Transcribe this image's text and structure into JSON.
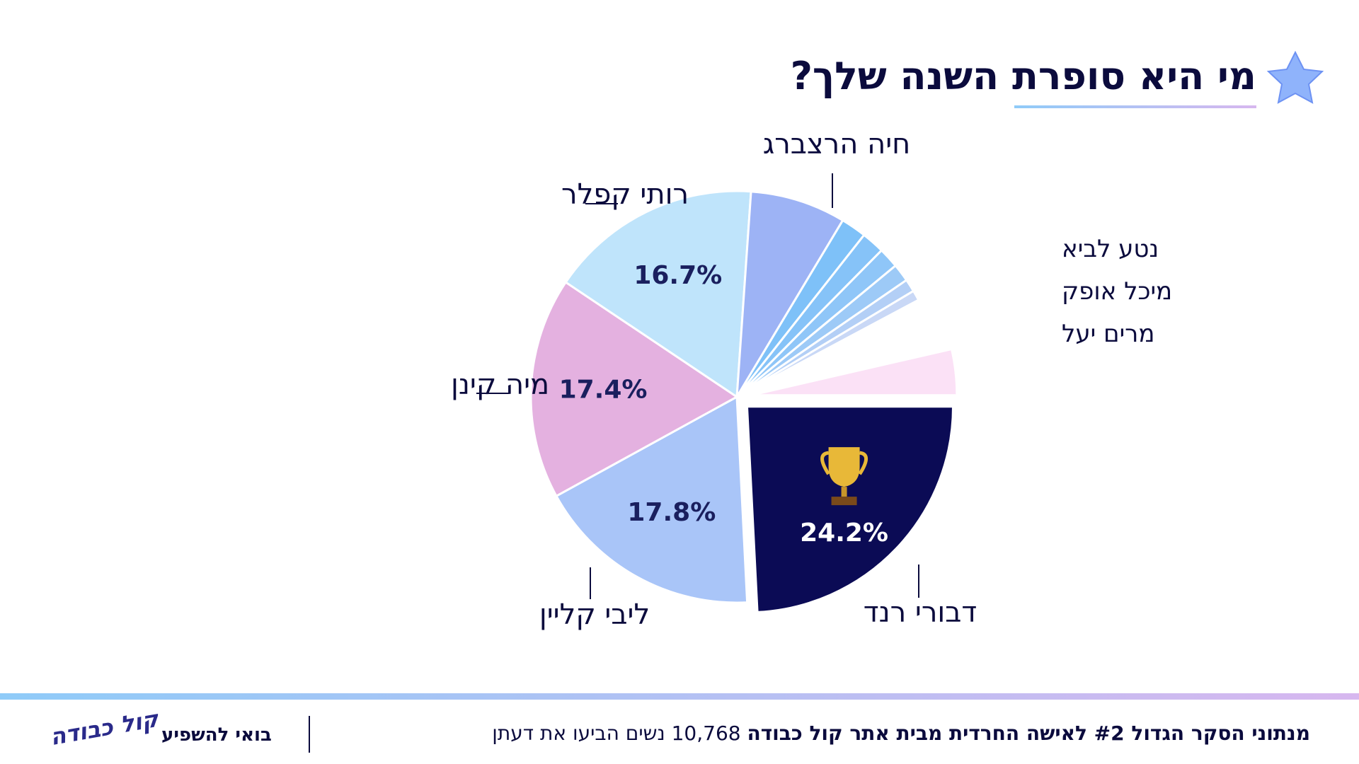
{
  "header": {
    "title": "מי היא סופרת השנה שלך?"
  },
  "chart_data": {
    "type": "pie",
    "categories": [
      "דבורי רנד",
      "ליבי קליין",
      "מיה קינן",
      "רותי קפלר",
      "חיה הרצברג",
      null,
      null,
      null,
      null,
      null,
      null,
      null,
      null
    ],
    "values": [
      24.2,
      17.8,
      17.4,
      16.7,
      7.5,
      2.0,
      1.8,
      1.6,
      1.4,
      1.0,
      0.8,
      4.2,
      3.6
    ],
    "value_labels": [
      "24.2%",
      "17.8%",
      "17.4%",
      "16.7%",
      null,
      null,
      null,
      null,
      null,
      null,
      null,
      null,
      null
    ],
    "colors": [
      "#0b0b55",
      "#a9c5f8",
      "#e4b1e0",
      "#bfe4fb",
      "#9db3f5",
      "#7ec1f8",
      "#86c3f8",
      "#8fc6f8",
      "#9dcaf7",
      "#b3cff6",
      "#c9d8f6",
      "#ffffff",
      "#fbe1f6"
    ],
    "exploded": [
      true,
      false,
      false,
      false,
      false,
      false,
      false,
      false,
      false,
      false,
      false,
      false,
      true
    ],
    "side_labels": [
      "נטע לביא",
      "מיכל אופק",
      "מרים יעל"
    ]
  },
  "footer": {
    "source": "מנתוני הסקר הגדול #2 לאישה החרדית מבית אתר קול כבודה",
    "count_text": "10,768 נשים הביעו את דעתן",
    "cta": "בואי להשפיע",
    "logo": "קול כבודה"
  }
}
